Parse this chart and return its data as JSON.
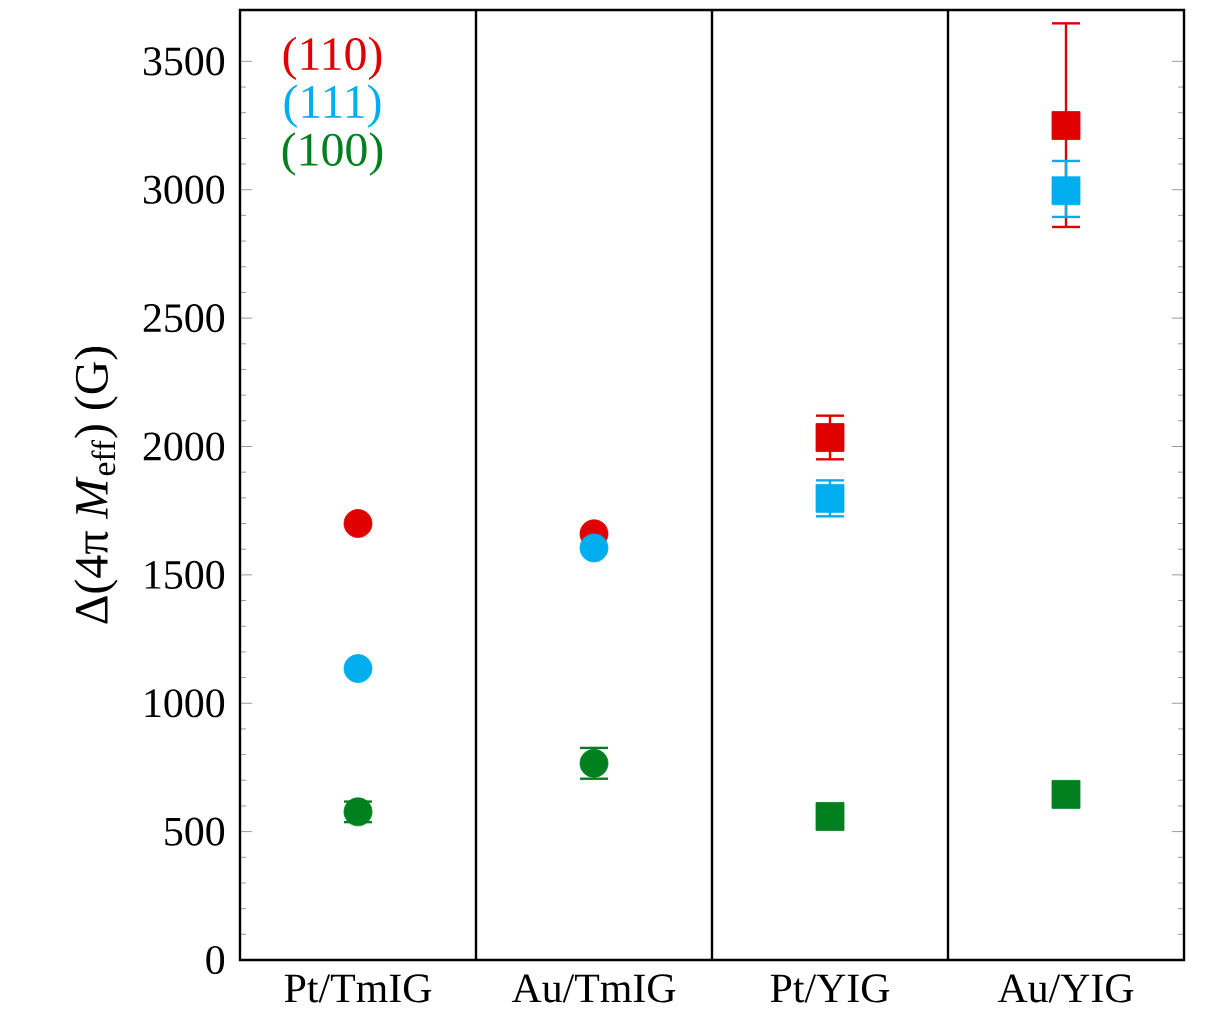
{
  "chart_data": {
    "type": "scatter",
    "ylabel": "Δ(4π *M*$_{eff}$) (G)",
    "categories": [
      "Pt/TmIG",
      "Au/TmIG",
      "Pt/YIG",
      "Au/YIG"
    ],
    "ylim": [
      0,
      3700
    ],
    "yticks": [
      0,
      500,
      1000,
      1500,
      2000,
      2500,
      3000,
      3500
    ],
    "grid": "x",
    "legend": "top left",
    "series": [
      {
        "name": "(110)",
        "color": "#e00000",
        "marker": "circle",
        "values": [
          1700,
          1660,
          null,
          null
        ],
        "errors": [
          null,
          null,
          null,
          null
        ]
      },
      {
        "name": "(111)",
        "color": "#00aeef",
        "marker": "circle",
        "values": [
          1135,
          1605,
          null,
          null
        ],
        "errors": [
          null,
          null,
          null,
          null
        ]
      },
      {
        "name": "(100)",
        "color": "#007f1f",
        "marker": "circle",
        "values": [
          577,
          766,
          null,
          null
        ],
        "errors": [
          40,
          60,
          null,
          null
        ]
      },
      {
        "color": "#e00000",
        "marker": "square",
        "values": [
          null,
          null,
          2035,
          3250
        ],
        "errors": [
          null,
          null,
          85,
          [
            2855,
            3648
          ]
        ]
      },
      {
        "color": "#00aeef",
        "marker": "square",
        "values": [
          null,
          null,
          1798,
          2996
        ],
        "errors": [
          null,
          null,
          70,
          [
            2894,
            3112
          ]
        ]
      },
      {
        "color": "#007f1f",
        "marker": "square",
        "values": [
          null,
          null,
          559,
          645
        ],
        "errors": [
          null,
          null,
          null,
          null
        ]
      }
    ]
  }
}
